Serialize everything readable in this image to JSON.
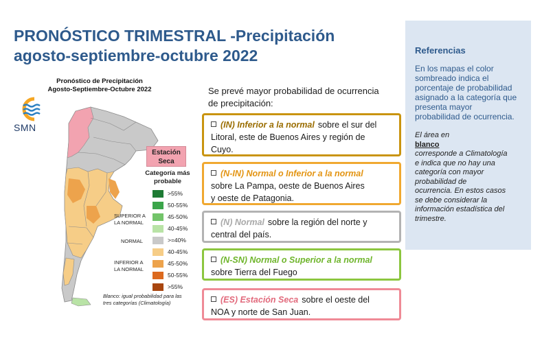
{
  "title": {
    "line1": "PRONÓSTICO TRIMESTRAL -Precipitación",
    "line2": "agosto-septiembre-octubre 2022"
  },
  "map": {
    "title_line1": "Pronóstico de Precipitación",
    "title_line2": "Agosto-Septiembre-Octubre 2022",
    "logo_text": "SMN",
    "estacion_line1": "Estación",
    "estacion_line2": "Seca",
    "category_line1": "Categoría más",
    "category_line2": "probable",
    "legend": [
      {
        "label": ">55%",
        "color": "#1e7b34"
      },
      {
        "label": "50-55%",
        "color": "#3ba54a"
      },
      {
        "label": "45-50%",
        "color": "#73c46a"
      },
      {
        "label": "40-45%",
        "color": "#b9e3a6"
      },
      {
        "label": ">=40%",
        "color": "#c9c9c9"
      },
      {
        "label": "40-45%",
        "color": "#f6cd87"
      },
      {
        "label": "45-50%",
        "color": "#eda34c"
      },
      {
        "label": "50-55%",
        "color": "#dc6a1f"
      },
      {
        "label": ">55%",
        "color": "#a8460f"
      }
    ],
    "group_superior_line1": "SUPERIOR A",
    "group_superior_line2": "LA NORMAL",
    "group_normal": "NORMAL",
    "group_inferior_line1": "INFERIOR A",
    "group_inferior_line2": "LA NORMAL",
    "blanco_note": "Blanco: igual probabilidad para las tres categorías (Climatología)"
  },
  "intro": {
    "line1": "Se prevé mayor probabilidad de ocurrencia",
    "line2": "de precipitación:"
  },
  "forecasts": [
    {
      "code": "(IN) Inferior a la normal",
      "line1_rest": "sobre el sur del",
      "line2": "Litoral, este de Buenos Aires y región de",
      "line3": "Cuyo.",
      "border": "#c9940f",
      "code_color": "#9a6d00"
    },
    {
      "code": "(N-IN) Normal o Inferior a la normal",
      "line1_rest": "",
      "line2": "sobre La Pampa, oeste de Buenos Aires",
      "line3": "y oeste de Patagonia.",
      "border": "#f0a830",
      "code_color": "#e39412"
    },
    {
      "code": "(N) Normal",
      "line1_rest": "sobre la región del norte y",
      "line2": "central del país.",
      "line3": "",
      "border": "#b3b3b3",
      "code_color": "#a9a9a9"
    },
    {
      "code": "(N-SN) Normal o Superior a la normal",
      "line1_rest": "",
      "line2": "sobre Tierra del Fuego",
      "line3": "",
      "border": "#8cc63f",
      "code_color": "#6fb52c"
    },
    {
      "code": "(ES) Estación Seca",
      "line1_rest": "sobre el oeste del",
      "line2": "NOA y norte de San Juan.",
      "line3": "",
      "border": "#ef8a96",
      "code_color": "#e26a7c"
    }
  ],
  "references": {
    "title": "Referencias",
    "p1_lines": [
      "En los mapas el color",
      "sombreado indica el",
      "porcentaje de probabilidad",
      "asignado a la categoría que",
      "presenta mayor",
      "probabilidad de ocurrencia."
    ],
    "p2_a": "El área en",
    "p2_blanco": "blanco",
    "p2_lines": [
      "corresponde a Climatología",
      "e indica que no hay una",
      "categoría con mayor",
      "probabilidad de",
      "ocurrencia. En estos casos",
      "se debe considerar la",
      "información estadística del",
      "trimestre."
    ]
  }
}
